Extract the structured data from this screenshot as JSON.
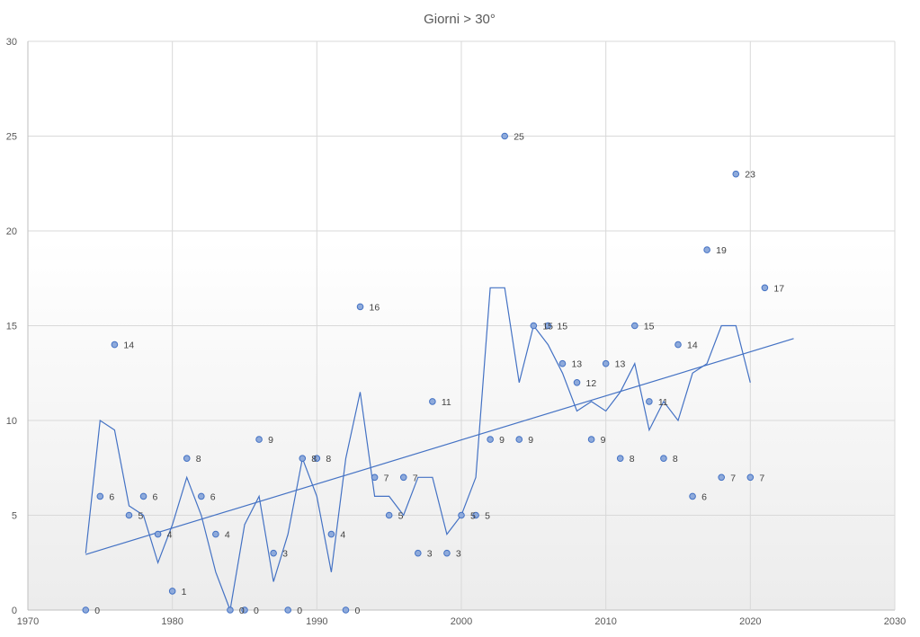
{
  "chart_data": {
    "type": "scatter",
    "title": "Giorni > 30°",
    "xlim": [
      1970,
      2030
    ],
    "ylim": [
      0,
      30
    ],
    "x_ticks": [
      1970,
      1980,
      1990,
      2000,
      2010,
      2020,
      2030
    ],
    "y_ticks": [
      0,
      5,
      10,
      15,
      20,
      25,
      30
    ],
    "grid": true,
    "legend": "none",
    "series": [
      {
        "type": "scatter",
        "data_labels": true,
        "x": [
          1974,
          1975,
          1976,
          1977,
          1978,
          1979,
          1980,
          1981,
          1982,
          1983,
          1984,
          1985,
          1986,
          1987,
          1988,
          1989,
          1990,
          1991,
          1992,
          1993,
          1994,
          1995,
          1996,
          1997,
          1998,
          1999,
          2000,
          2001,
          2002,
          2003,
          2004,
          2005,
          2006,
          2007,
          2008,
          2009,
          2010,
          2011,
          2012,
          2013,
          2014,
          2015,
          2016,
          2017,
          2018,
          2019,
          2020,
          2021
        ],
        "y": [
          0,
          6,
          14,
          5,
          6,
          4,
          1,
          8,
          6,
          4,
          0,
          0,
          9,
          3,
          0,
          8,
          8,
          4,
          0,
          16,
          7,
          5,
          7,
          3,
          11,
          3,
          5,
          5,
          9,
          25,
          9,
          15,
          15,
          13,
          12,
          9,
          13,
          8,
          15,
          11,
          8,
          14,
          6,
          19,
          7,
          23,
          7,
          17
        ]
      },
      {
        "type": "line",
        "description": "2-period moving average",
        "x": [
          1974,
          1975,
          1976,
          1977,
          1978,
          1979,
          1980,
          1981,
          1982,
          1983,
          1984,
          1985,
          1986,
          1987,
          1988,
          1989,
          1990,
          1991,
          1992,
          1993,
          1994,
          1995,
          1996,
          1997,
          1998,
          1999,
          2000,
          2001,
          2002,
          2003,
          2004,
          2005,
          2006,
          2007,
          2008,
          2009,
          2010,
          2011,
          2012,
          2013,
          2014,
          2015,
          2016,
          2017,
          2018,
          2019,
          2020
        ],
        "y": [
          3,
          10,
          9.5,
          5.5,
          5,
          2.5,
          4.5,
          7,
          5,
          2,
          0,
          4.5,
          6,
          1.5,
          4,
          8,
          6,
          2,
          8,
          11.5,
          6,
          6,
          5,
          7,
          7,
          4,
          5,
          7,
          17,
          17,
          12,
          15,
          14,
          12.5,
          10.5,
          11,
          10.5,
          11.5,
          13,
          9.5,
          11,
          10,
          12.5,
          13,
          15,
          15,
          12
        ]
      },
      {
        "type": "trendline",
        "x": [
          1974,
          2023
        ],
        "y": [
          2.93,
          14.32
        ]
      }
    ]
  }
}
